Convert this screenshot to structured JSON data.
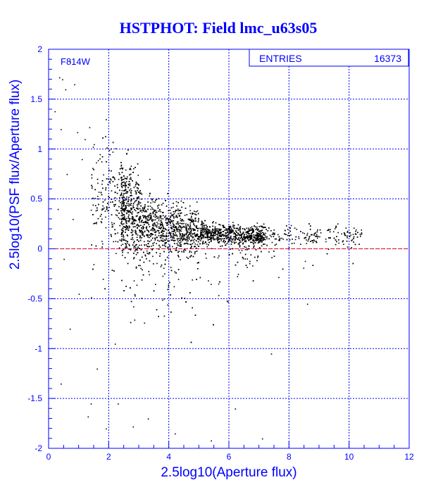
{
  "chart_data": {
    "type": "scatter",
    "title": "HSTPHOT: Field lmc_u63s05",
    "xlabel": "2.5log10(Aperture flux)",
    "ylabel": "2.5log10(PSF flux/Aperture flux)",
    "xlim": [
      0,
      12
    ],
    "ylim": [
      -2,
      2
    ],
    "x_ticks": [
      0,
      2,
      4,
      6,
      8,
      10,
      12
    ],
    "y_ticks": [
      -2,
      -1.5,
      -1,
      -0.5,
      0,
      0.5,
      1,
      1.5,
      2
    ],
    "grid": true,
    "reference_line": {
      "y": 0,
      "color": "#ff0000"
    },
    "annotation": "F814W",
    "stats_box": {
      "label": "ENTRIES",
      "value": "16373"
    },
    "point_color": "#000000",
    "axis_color": "#0000ff",
    "density_ridge": {
      "description_free": true,
      "x": [
        2.0,
        2.5,
        3.0,
        4.0,
        5.0,
        6.0,
        7.0,
        8.0,
        9.0,
        10.0,
        10.4
      ],
      "y": [
        0.55,
        0.42,
        0.3,
        0.2,
        0.17,
        0.15,
        0.14,
        0.14,
        0.15,
        0.15,
        0.15
      ]
    },
    "sample_points": [
      [
        0.35,
        1.72
      ],
      [
        0.45,
        1.7
      ],
      [
        0.7,
        1.88
      ],
      [
        0.85,
        1.65
      ],
      [
        0.55,
        1.6
      ],
      [
        0.2,
        1.38
      ],
      [
        0.4,
        1.2
      ],
      [
        0.95,
        1.17
      ],
      [
        1.2,
        1.1
      ],
      [
        1.35,
        1.22
      ],
      [
        1.5,
        1.05
      ],
      [
        1.7,
        0.95
      ],
      [
        1.9,
        1.3
      ],
      [
        1.1,
        0.9
      ],
      [
        0.6,
        0.75
      ],
      [
        0.3,
        0.4
      ],
      [
        0.8,
        0.3
      ],
      [
        0.5,
        -0.1
      ],
      [
        1.0,
        -0.45
      ],
      [
        0.7,
        -0.8
      ],
      [
        1.6,
        -1.2
      ],
      [
        1.4,
        -1.55
      ],
      [
        1.3,
        -1.68
      ],
      [
        1.9,
        -1.8
      ],
      [
        2.3,
        -1.55
      ],
      [
        2.8,
        -1.78
      ],
      [
        3.3,
        -1.7
      ],
      [
        4.2,
        -1.85
      ],
      [
        5.4,
        -1.92
      ],
      [
        6.2,
        -1.6
      ],
      [
        7.1,
        -1.9
      ],
      [
        7.4,
        -1.05
      ],
      [
        8.6,
        -0.55
      ],
      [
        9.3,
        0.0
      ],
      [
        9.8,
        0.05
      ],
      [
        10.2,
        0.18
      ],
      [
        10.35,
        0.15
      ],
      [
        0.4,
        -1.35
      ],
      [
        1.8,
        -0.3
      ],
      [
        2.2,
        -0.95
      ]
    ]
  }
}
